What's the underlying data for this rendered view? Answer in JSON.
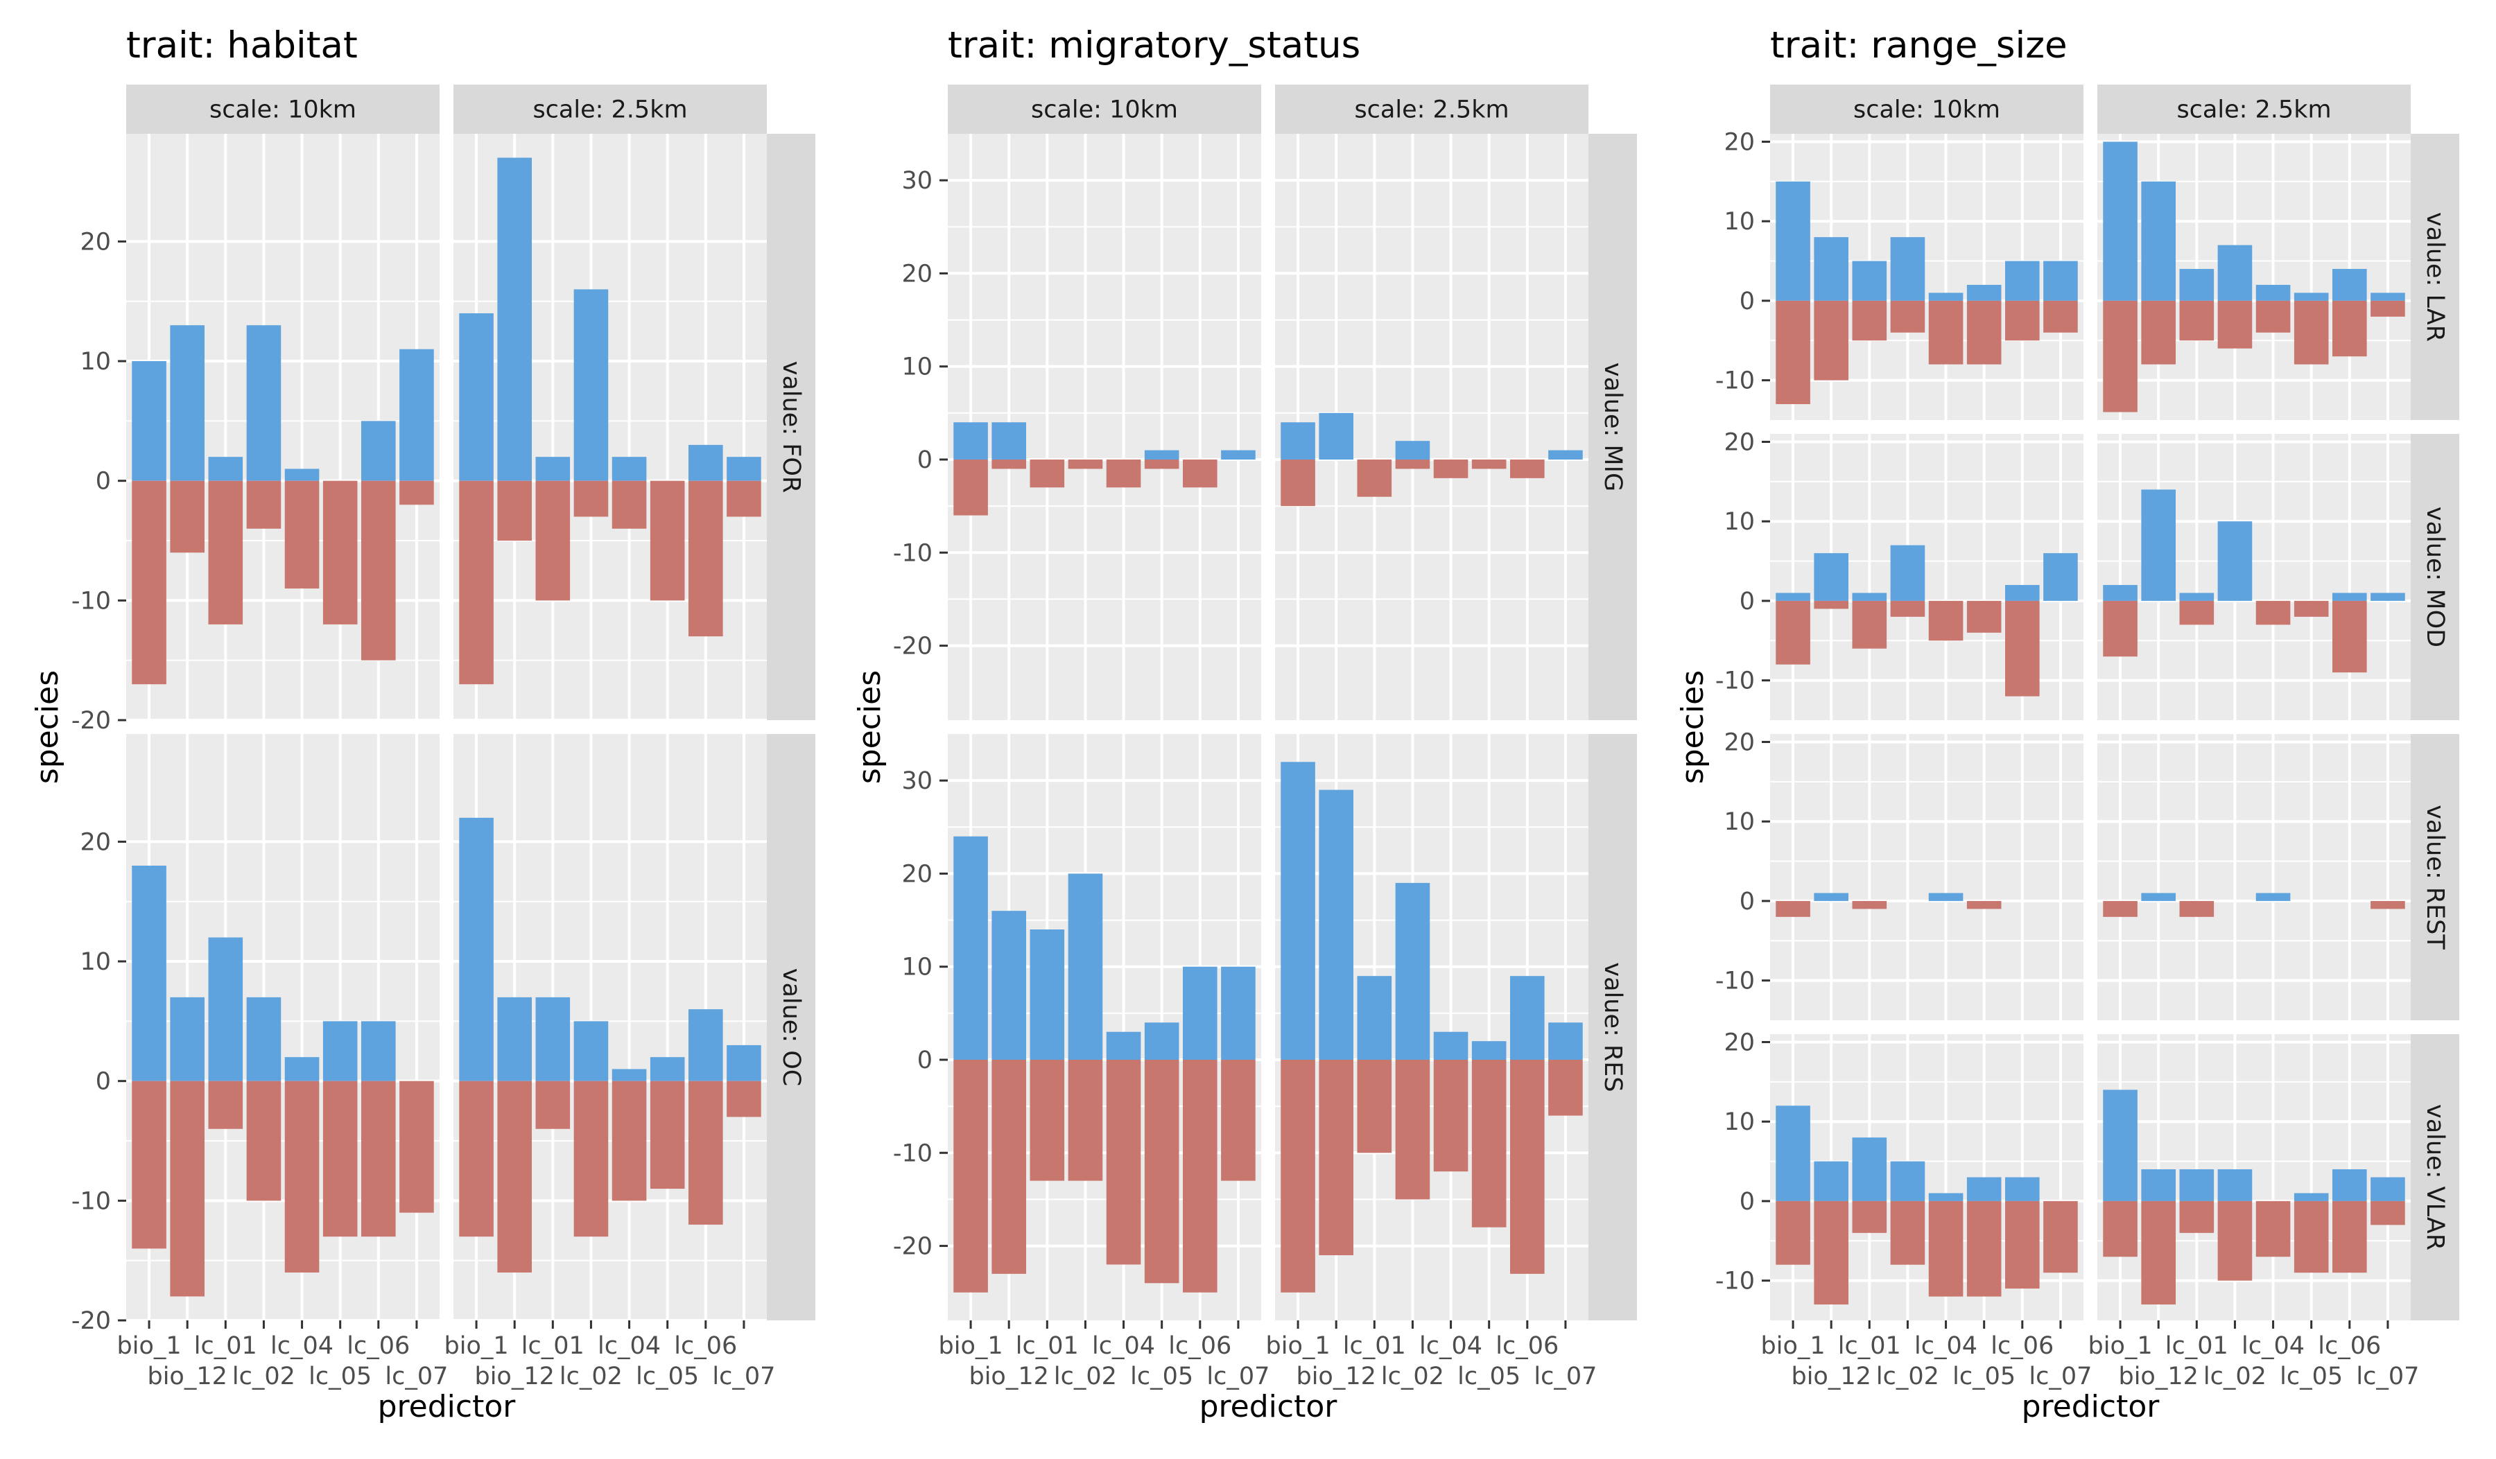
{
  "chart_data": {
    "type": "bar",
    "x_label": "predictor",
    "y_label": "species",
    "predictors": [
      "bio_1",
      "bio_12",
      "lc_01",
      "lc_02",
      "lc_04",
      "lc_05",
      "lc_06",
      "lc_07"
    ],
    "colors": {
      "positive": "#5fa3de",
      "negative": "#c8776f",
      "panel": "#ebebeb",
      "strip": "#d9d9d9",
      "grid": "#ffffff"
    },
    "panels": [
      {
        "title": "trait: habitat",
        "ylim": [
          -20,
          29
        ],
        "y_ticks": [
          -20,
          -10,
          0,
          10,
          20
        ],
        "columns": [
          "scale: 10km",
          "scale: 2.5km"
        ],
        "rows": [
          {
            "label": "value: FOR",
            "cells": [
              {
                "positive": [
                  10,
                  13,
                  2,
                  13,
                  1,
                  0,
                  5,
                  11
                ],
                "negative": [
                  -17,
                  -6,
                  -12,
                  -4,
                  -9,
                  -12,
                  -15,
                  -2
                ]
              },
              {
                "positive": [
                  14,
                  27,
                  2,
                  16,
                  2,
                  0,
                  3,
                  2
                ],
                "negative": [
                  -17,
                  -5,
                  -10,
                  -3,
                  -4,
                  -10,
                  -13,
                  -3
                ]
              }
            ]
          },
          {
            "label": "value: OC",
            "cells": [
              {
                "positive": [
                  18,
                  7,
                  12,
                  7,
                  2,
                  5,
                  5,
                  0
                ],
                "negative": [
                  -14,
                  -18,
                  -4,
                  -10,
                  -16,
                  -13,
                  -13,
                  -11
                ]
              },
              {
                "positive": [
                  22,
                  7,
                  7,
                  5,
                  1,
                  2,
                  6,
                  3
                ],
                "negative": [
                  -13,
                  -16,
                  -4,
                  -13,
                  -10,
                  -9,
                  -12,
                  -3
                ]
              }
            ]
          }
        ]
      },
      {
        "title": "trait: migratory_status",
        "ylim": [
          -28,
          35
        ],
        "y_ticks": [
          -20,
          -10,
          0,
          10,
          20,
          30
        ],
        "columns": [
          "scale: 10km",
          "scale: 2.5km"
        ],
        "rows": [
          {
            "label": "value: MIG",
            "cells": [
              {
                "positive": [
                  4,
                  4,
                  0,
                  0,
                  0,
                  1,
                  0,
                  1
                ],
                "negative": [
                  -6,
                  -1,
                  -3,
                  -1,
                  -3,
                  -1,
                  -3,
                  0
                ]
              },
              {
                "positive": [
                  4,
                  5,
                  0,
                  2,
                  0,
                  0,
                  0,
                  1
                ],
                "negative": [
                  -5,
                  0,
                  -4,
                  -1,
                  -2,
                  -1,
                  -2,
                  0
                ]
              }
            ]
          },
          {
            "label": "value: RES",
            "cells": [
              {
                "positive": [
                  24,
                  16,
                  14,
                  20,
                  3,
                  4,
                  10,
                  10
                ],
                "negative": [
                  -25,
                  -23,
                  -13,
                  -13,
                  -22,
                  -24,
                  -25,
                  -13
                ]
              },
              {
                "positive": [
                  32,
                  29,
                  9,
                  19,
                  3,
                  2,
                  9,
                  4
                ],
                "negative": [
                  -25,
                  -21,
                  -10,
                  -15,
                  -12,
                  -18,
                  -23,
                  -6
                ]
              }
            ]
          }
        ]
      },
      {
        "title": "trait: range_size",
        "ylim": [
          -15,
          21
        ],
        "y_ticks": [
          -10,
          0,
          10,
          20
        ],
        "columns": [
          "scale: 10km",
          "scale: 2.5km"
        ],
        "rows": [
          {
            "label": "value: LAR",
            "cells": [
              {
                "positive": [
                  15,
                  8,
                  5,
                  8,
                  1,
                  2,
                  5,
                  5
                ],
                "negative": [
                  -13,
                  -10,
                  -5,
                  -4,
                  -8,
                  -8,
                  -5,
                  -4
                ]
              },
              {
                "positive": [
                  20,
                  15,
                  4,
                  7,
                  2,
                  1,
                  4,
                  1
                ],
                "negative": [
                  -14,
                  -8,
                  -5,
                  -6,
                  -4,
                  -8,
                  -7,
                  -2
                ]
              }
            ]
          },
          {
            "label": "value: MOD",
            "cells": [
              {
                "positive": [
                  1,
                  6,
                  1,
                  7,
                  0,
                  0,
                  2,
                  6
                ],
                "negative": [
                  -8,
                  -1,
                  -6,
                  -2,
                  -5,
                  -4,
                  -12,
                  0
                ]
              },
              {
                "positive": [
                  2,
                  14,
                  1,
                  10,
                  0,
                  0,
                  1,
                  1
                ],
                "negative": [
                  -7,
                  0,
                  -3,
                  0,
                  -3,
                  -2,
                  -9,
                  0
                ]
              }
            ]
          },
          {
            "label": "value: REST",
            "cells": [
              {
                "positive": [
                  0,
                  1,
                  0,
                  0,
                  1,
                  0,
                  0,
                  0
                ],
                "negative": [
                  -2,
                  0,
                  -1,
                  0,
                  0,
                  -1,
                  0,
                  0
                ]
              },
              {
                "positive": [
                  0,
                  1,
                  0,
                  0,
                  1,
                  0,
                  0,
                  0
                ],
                "negative": [
                  -2,
                  0,
                  -2,
                  0,
                  0,
                  0,
                  0,
                  -1
                ]
              }
            ]
          },
          {
            "label": "value: VLAR",
            "cells": [
              {
                "positive": [
                  12,
                  5,
                  8,
                  5,
                  1,
                  3,
                  3,
                  0
                ],
                "negative": [
                  -8,
                  -13,
                  -4,
                  -8,
                  -12,
                  -12,
                  -11,
                  -9
                ]
              },
              {
                "positive": [
                  14,
                  4,
                  4,
                  4,
                  0,
                  1,
                  4,
                  3
                ],
                "negative": [
                  -7,
                  -13,
                  -4,
                  -10,
                  -7,
                  -9,
                  -9,
                  -3
                ]
              }
            ]
          }
        ]
      }
    ]
  }
}
